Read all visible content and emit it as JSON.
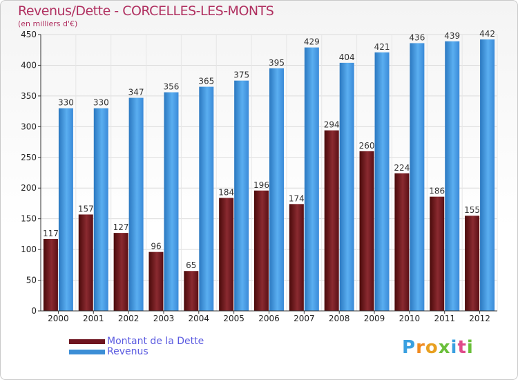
{
  "title": "Revenus/Dette - CORCELLES-LES-MONTS",
  "subtitle": "(en milliers d'€)",
  "logo_letters": [
    "P",
    "r",
    "o",
    "x",
    "i",
    "t",
    "i"
  ],
  "logo_colors": [
    "#3aa0e0",
    "#f08a20",
    "#e8a020",
    "#6abf3a",
    "#3aa0e0",
    "#e04a8a",
    "#6abf3a"
  ],
  "colors": {
    "dette": "#6e1520",
    "revenus": "#3c8ed6",
    "title": "#b03060",
    "legend_text": "#5a5ae0"
  },
  "chart_data": {
    "type": "bar",
    "categories": [
      "2000",
      "2001",
      "2002",
      "2003",
      "2004",
      "2005",
      "2006",
      "2007",
      "2008",
      "2009",
      "2010",
      "2011",
      "2012"
    ],
    "series": [
      {
        "name": "Montant de la Dette",
        "values": [
          117,
          157,
          127,
          96,
          65,
          184,
          196,
          174,
          294,
          260,
          224,
          186,
          155
        ]
      },
      {
        "name": "Revenus",
        "values": [
          330,
          330,
          347,
          356,
          365,
          375,
          395,
          429,
          404,
          421,
          436,
          439,
          442
        ]
      }
    ],
    "ylim": [
      0,
      450
    ],
    "yticks": [
      0,
      50,
      100,
      150,
      200,
      250,
      300,
      350,
      400,
      450
    ],
    "grid": true,
    "legend_position": "bottom-left"
  }
}
